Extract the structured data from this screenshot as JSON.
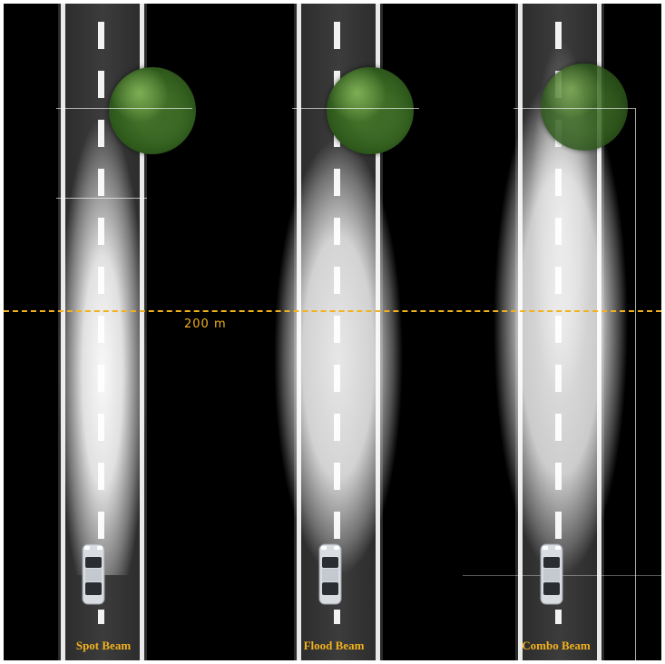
{
  "distance_marker": {
    "label": "200 m",
    "color": "#f2b21d"
  },
  "beams": [
    {
      "id": "spot",
      "label": "Spot Beam"
    },
    {
      "id": "flood",
      "label": "Flood Beam"
    },
    {
      "id": "combo",
      "label": "Combo Beam"
    }
  ],
  "colors": {
    "background": "#000000",
    "road": "#333333",
    "lane_marking": "#f2f2f2",
    "label": "#f2b21d",
    "tree": "#4f8232"
  },
  "icons": {
    "tree": "tree-icon",
    "car": "car-top-view-icon"
  }
}
